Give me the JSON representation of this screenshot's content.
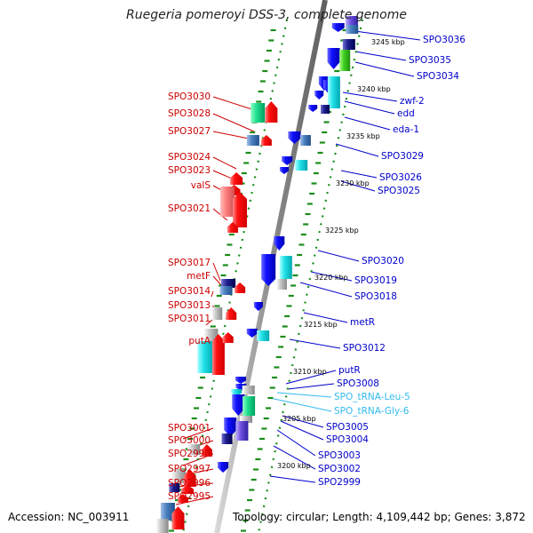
{
  "title": "Ruegeria pomeroyi DSS-3, complete genome",
  "accession": "Accession: NC_003911",
  "summary": "Topology: circular; Length: 4,109,442 bp; Genes: 3,872",
  "colors": {
    "backbone": "#8c8c8c",
    "forward_gene": "#ff1a1a",
    "reverse_gene": "#1a1aff",
    "rna_gene": "#33ccff",
    "tick_dots": "#1a8c1a",
    "forward_label": "#cc0000",
    "reverse_label": "#0000cc",
    "rna_label": "#33bbee"
  },
  "scale_labels": [
    "3245 kbp",
    "3240 kbp",
    "3235 kbp",
    "3230 kbp",
    "3225 kbp",
    "3220 kbp",
    "3215 kbp",
    "3210 kbp",
    "3205 kbp",
    "3200 kbp"
  ],
  "forward_genes": [
    "SPO3030",
    "SPO3028",
    "SPO3027",
    "SPO3024",
    "SPO3023",
    "valS",
    "SPO3021",
    "SPO3017",
    "metF",
    "SPO3014",
    "SPO3013",
    "SPO3011",
    "putA",
    "SPO3001",
    "SPO3000",
    "SPO2998",
    "SPO2997",
    "SPO2996",
    "SPO2995"
  ],
  "reverse_genes": [
    "SPO3036",
    "SPO3035",
    "SPO3034",
    "zwf-2",
    "edd",
    "eda-1",
    "SPO3029",
    "SPO3026",
    "SPO3025",
    "SPO3020",
    "SPO3019",
    "SPO3018",
    "metR",
    "SPO3012",
    "putR",
    "SPO3008",
    "SPO3005",
    "SPO3004",
    "SPO3003",
    "SPO3002",
    "SPO2999"
  ],
  "rna_genes": [
    "SPO_tRNA-Leu-5",
    "SPO_tRNA-Gly-6"
  ]
}
